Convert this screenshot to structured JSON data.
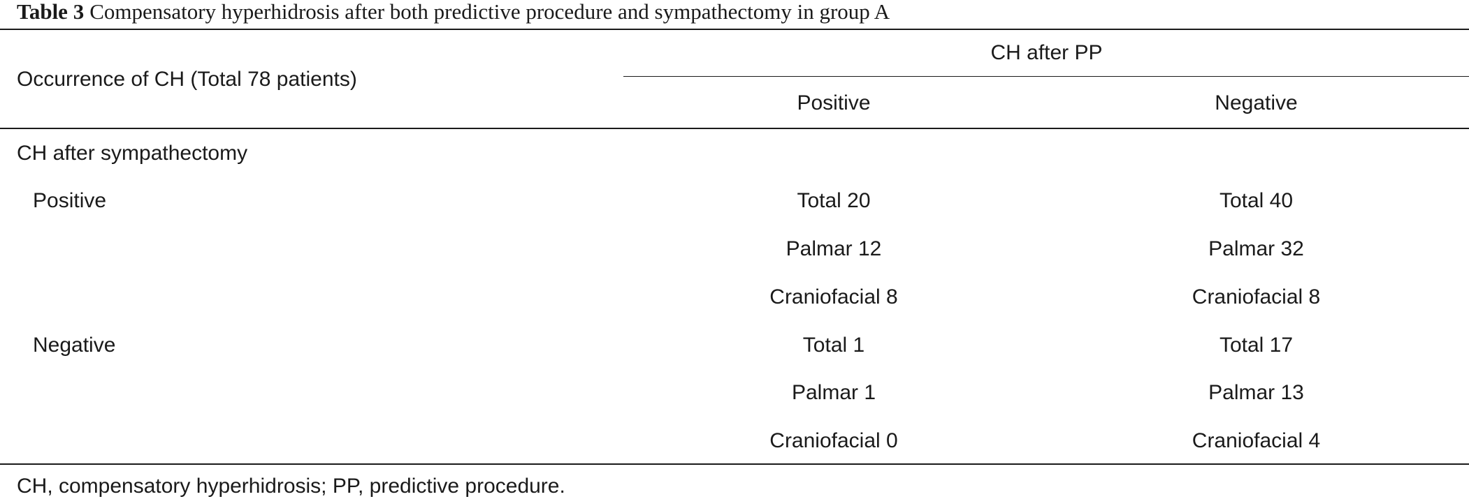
{
  "caption": {
    "label": "Table 3",
    "text": "Compensatory hyperhidrosis after both predictive procedure and sympathectomy in group A"
  },
  "header": {
    "stub": "Occurrence of CH (Total 78 patients)",
    "spanning": "CH after PP",
    "columns": [
      "Positive",
      "Negative"
    ]
  },
  "section": {
    "title": "CH after sympathectomy"
  },
  "rows": [
    {
      "label": "Positive",
      "col1": "Total 20",
      "col2": "Total 40"
    },
    {
      "label": "",
      "col1": "Palmar 12",
      "col2": "Palmar 32"
    },
    {
      "label": "",
      "col1": "Craniofacial 8",
      "col2": "Craniofacial 8"
    },
    {
      "label": "Negative",
      "col1": "Total 1",
      "col2": "Total 17"
    },
    {
      "label": "",
      "col1": "Palmar 1",
      "col2": "Palmar 13"
    },
    {
      "label": "",
      "col1": "Craniofacial 0",
      "col2": "Craniofacial 4"
    }
  ],
  "footnote": "CH, compensatory hyperhidrosis; PP, predictive procedure."
}
